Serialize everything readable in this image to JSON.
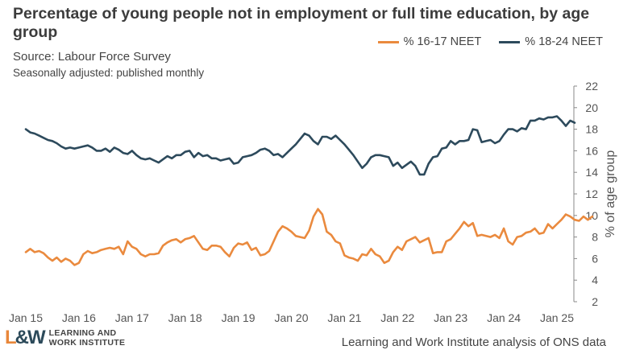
{
  "title": "Percentage of young people not in employment or full time education, by age group",
  "source": "Source: Labour Force Survey",
  "note": "Seasonally adjusted: published monthly",
  "footer": "Learning and Work Institute analysis of ONS data",
  "logo": {
    "line1": "LEARNING AND",
    "line2": "WORK INSTITUTE",
    "mark": "L&W"
  },
  "colors": {
    "series1": "#ea8a3e",
    "series2": "#2d4a5c",
    "axis": "#666666"
  },
  "chart_data": {
    "type": "line",
    "ylabel": "% of age group",
    "ylim": [
      2,
      22
    ],
    "yticks": [
      2,
      4,
      6,
      8,
      10,
      12,
      14,
      16,
      18,
      20,
      22
    ],
    "xticks": [
      "Jan 15",
      "Jan 16",
      "Jan 17",
      "Jan 18",
      "Jan 19",
      "Jan 20",
      "Jan 21",
      "Jan 22",
      "Jan 23",
      "Jan 24",
      "Jan 25"
    ],
    "x_start": "2015-01",
    "x_frequency": "monthly",
    "legend_position": "top-right",
    "grid": false,
    "series": [
      {
        "name": "% 16-17 NEET",
        "color": "#ea8a3e",
        "values": [
          6.6,
          6.9,
          6.6,
          6.7,
          6.5,
          6.1,
          5.8,
          6.1,
          5.7,
          6.0,
          5.8,
          5.4,
          5.6,
          6.4,
          6.7,
          6.5,
          6.6,
          6.8,
          6.9,
          7.0,
          6.9,
          7.1,
          6.4,
          7.6,
          7.1,
          6.9,
          6.4,
          6.2,
          6.4,
          6.4,
          6.5,
          7.2,
          7.5,
          7.7,
          7.8,
          7.5,
          7.8,
          7.9,
          8.1,
          7.5,
          6.9,
          6.8,
          7.2,
          7.2,
          7.1,
          6.6,
          6.2,
          7.0,
          7.4,
          7.3,
          7.5,
          6.8,
          7.0,
          6.3,
          6.4,
          6.7,
          7.6,
          8.5,
          9.0,
          8.8,
          8.5,
          8.1,
          8.0,
          7.9,
          8.6,
          9.9,
          10.6,
          10.1,
          8.5,
          8.2,
          7.6,
          7.4,
          6.3,
          6.1,
          6.0,
          5.8,
          6.4,
          6.3,
          6.9,
          6.4,
          6.2,
          5.6,
          5.8,
          6.6,
          7.1,
          6.8,
          7.6,
          7.8,
          8.0,
          7.5,
          7.7,
          7.9,
          6.5,
          6.6,
          6.6,
          7.6,
          7.8,
          8.3,
          8.8,
          9.4,
          9.0,
          9.3,
          8.1,
          8.2,
          8.1,
          8.0,
          8.2,
          7.9,
          8.8,
          7.6,
          7.3,
          8.0,
          8.1,
          8.4,
          8.5,
          8.8,
          8.3,
          8.4,
          9.2,
          8.8,
          9.2,
          9.6,
          10.1,
          9.9,
          9.6,
          9.5,
          9.9,
          9.6,
          9.9
        ]
      },
      {
        "name": "% 18-24 NEET",
        "color": "#2d4a5c",
        "values": [
          18.0,
          17.7,
          17.6,
          17.4,
          17.2,
          17.0,
          16.9,
          16.7,
          16.4,
          16.2,
          16.3,
          16.2,
          16.3,
          16.4,
          16.5,
          16.3,
          16.0,
          16.0,
          16.2,
          15.9,
          16.3,
          16.1,
          15.8,
          15.7,
          16.0,
          15.6,
          15.3,
          15.2,
          15.3,
          15.1,
          14.9,
          15.2,
          15.5,
          15.3,
          15.6,
          15.6,
          15.9,
          16.0,
          15.4,
          15.8,
          15.5,
          15.6,
          15.3,
          15.3,
          15.1,
          15.2,
          15.3,
          14.8,
          14.9,
          15.4,
          15.5,
          15.6,
          15.8,
          16.1,
          16.2,
          16.0,
          15.6,
          15.7,
          15.4,
          15.8,
          16.2,
          16.6,
          17.1,
          17.6,
          17.4,
          16.9,
          16.6,
          17.3,
          17.3,
          17.1,
          17.4,
          17.0,
          16.6,
          16.1,
          15.6,
          15.0,
          14.4,
          14.8,
          15.4,
          15.6,
          15.6,
          15.5,
          15.4,
          14.6,
          14.9,
          14.4,
          14.7,
          15.0,
          14.6,
          13.8,
          13.8,
          14.8,
          15.4,
          15.5,
          16.2,
          16.3,
          16.9,
          16.6,
          16.9,
          16.9,
          17.0,
          18.0,
          17.9,
          16.8,
          16.9,
          17.0,
          16.7,
          16.9,
          17.5,
          18.0,
          18.0,
          17.8,
          18.1,
          18.0,
          18.8,
          18.8,
          19.0,
          18.9,
          19.1,
          19.1,
          19.2,
          18.8,
          18.3,
          18.8,
          18.6
        ]
      }
    ]
  }
}
